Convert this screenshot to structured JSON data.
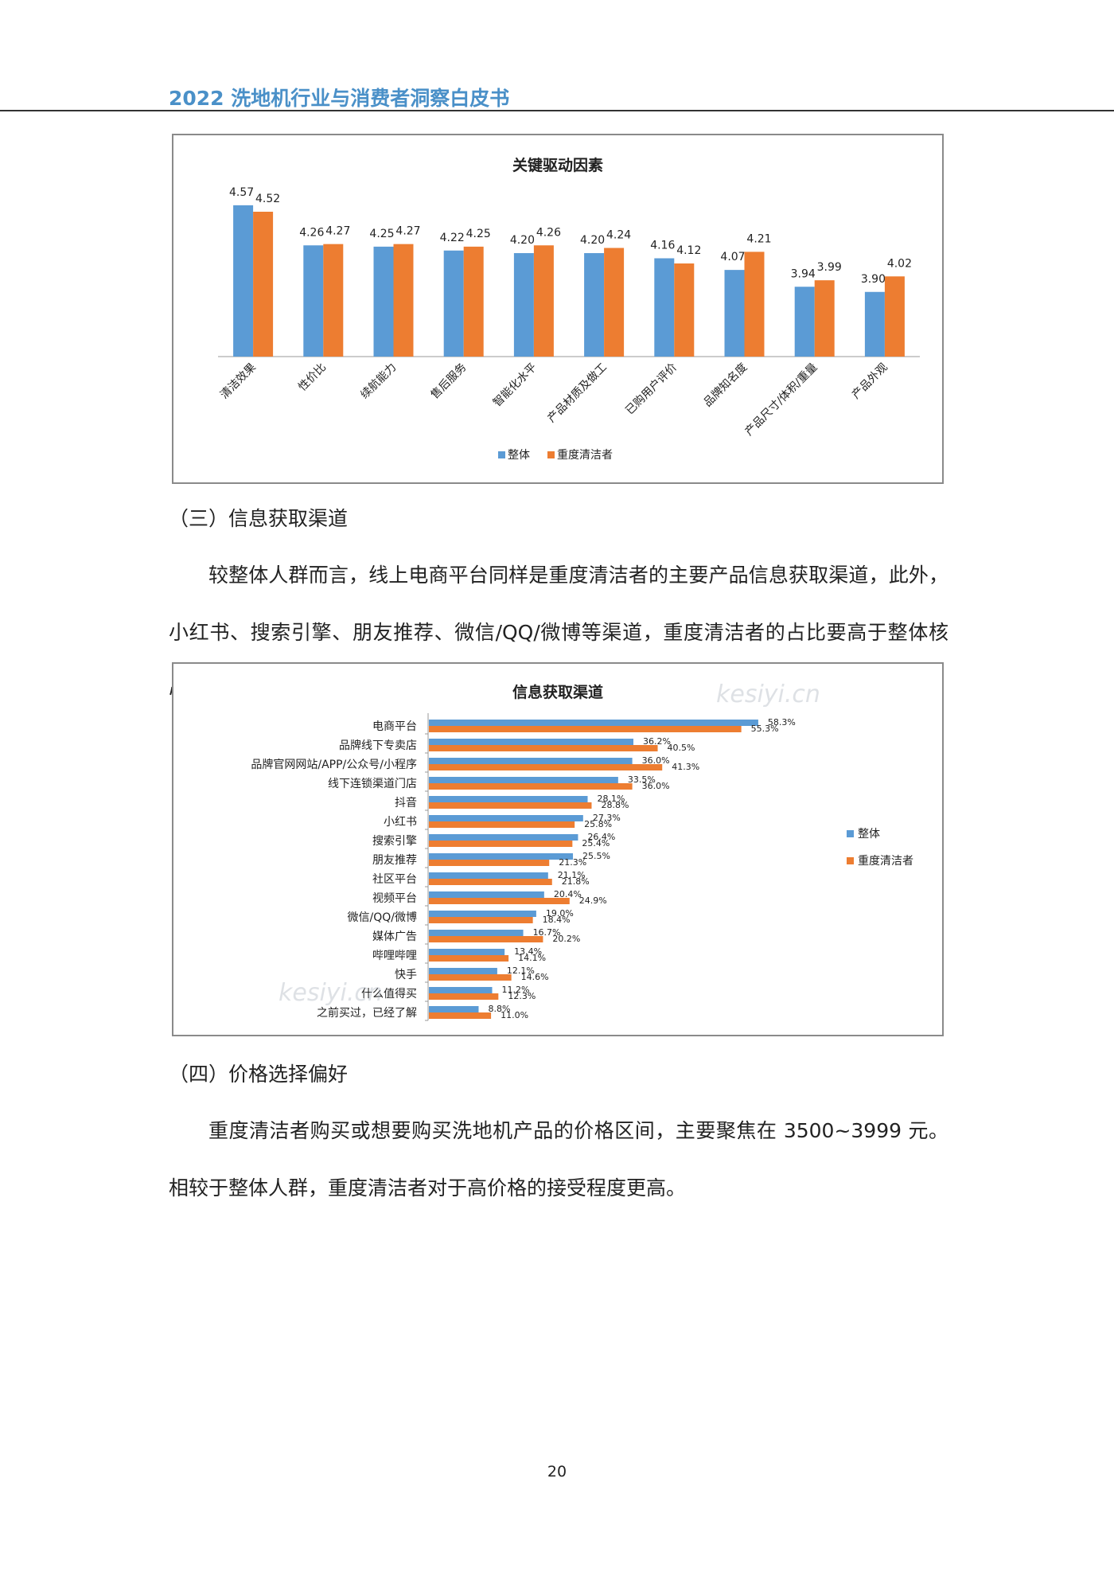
{
  "header": {
    "title": "2022 洗地机行业与消费者洞察白皮书"
  },
  "chart1": {
    "chart_data": {
      "type": "bar",
      "title": "关键驱动因素",
      "categories": [
        "清洁效果",
        "性价比",
        "续航能力",
        "售后服务",
        "智能化水平",
        "产品材质及做工",
        "已购用户评价",
        "品牌知名度",
        "产品尺寸/体积/重量",
        "产品外观"
      ],
      "series": [
        {
          "name": "整体",
          "values": [
            4.57,
            4.26,
            4.25,
            4.22,
            4.2,
            4.2,
            4.16,
            4.07,
            3.94,
            3.9
          ]
        },
        {
          "name": "重度清洁者",
          "values": [
            4.52,
            4.27,
            4.27,
            4.25,
            4.26,
            4.24,
            4.12,
            4.21,
            3.99,
            4.02
          ]
        }
      ],
      "value_labels": [
        [
          "4.57",
          "4.26",
          "4.25",
          "4.22",
          "4.20",
          "4.20",
          "4.16",
          "4.07",
          "3.94",
          "3.90"
        ],
        [
          "4.52",
          "4.27",
          "4.27",
          "4.25",
          "4.26",
          "4.24",
          "4.12",
          "4.21",
          "3.99",
          "4.02"
        ]
      ],
      "legend_position": "bottom",
      "colors": [
        "#5b9bd5",
        "#ed7d31"
      ]
    }
  },
  "section3": {
    "heading": "（三）信息获取渠道",
    "paragraph": "较整体人群而言，线上电商平台同样是重度清洁者的主要产品信息获取渠道，此外，小红书、搜索引擎、朋友推荐、微信/QQ/微博等渠道，重度清洁者的占比要高于整体核心人群。"
  },
  "chart2": {
    "chart_data": {
      "type": "bar",
      "orientation": "horizontal",
      "title": "信息获取渠道",
      "categories": [
        "电商平台",
        "品牌线下专卖店",
        "品牌官网网站/APP/公众号/小程序",
        "线下连锁渠道门店",
        "抖音",
        "小红书",
        "搜索引擎",
        "朋友推荐",
        "社区平台",
        "视频平台",
        "微信/QQ/微博",
        "媒体广告",
        "哔哩哔哩",
        "快手",
        "什么值得买",
        "之前买过，已经了解"
      ],
      "series": [
        {
          "name": "整体",
          "values": [
            58.3,
            36.2,
            36.0,
            33.5,
            28.1,
            27.3,
            26.4,
            25.5,
            21.1,
            20.4,
            19.0,
            16.7,
            13.4,
            12.1,
            11.2,
            8.8
          ]
        },
        {
          "name": "重度清洁者",
          "values": [
            55.3,
            40.5,
            41.3,
            36.0,
            28.8,
            25.8,
            25.4,
            21.3,
            21.8,
            24.9,
            18.4,
            20.2,
            14.1,
            14.6,
            12.3,
            11.0
          ]
        }
      ],
      "value_labels": [
        [
          "58.3%",
          "36.2%",
          "36.0%",
          "33.5%",
          "28.1%",
          "27.3%",
          "26.4%",
          "25.5%",
          "21.1%",
          "20.4%",
          "19.0%",
          "16.7%",
          "13.4%",
          "12.1%",
          "11.2%",
          "8.8%"
        ],
        [
          "55.3%",
          "40.5%",
          "41.3%",
          "36.0%",
          "28.8%",
          "25.8%",
          "25.4%",
          "21.3%",
          "21.8%",
          "24.9%",
          "18.4%",
          "20.2%",
          "14.1%",
          "14.6%",
          "12.3%",
          "11.0%"
        ]
      ],
      "legend_position": "right",
      "colors": [
        "#5b9bd5",
        "#ed7d31"
      ]
    }
  },
  "section4": {
    "heading": "（四）价格选择偏好",
    "paragraph": "重度清洁者购买或想要购买洗地机产品的价格区间，主要聚焦在 3500~3999 元。相较于整体人群，重度清洁者对于高价格的接受程度更高。"
  },
  "watermark": {
    "text": "kesiyi.cn"
  },
  "footer": {
    "page_number": "20"
  }
}
